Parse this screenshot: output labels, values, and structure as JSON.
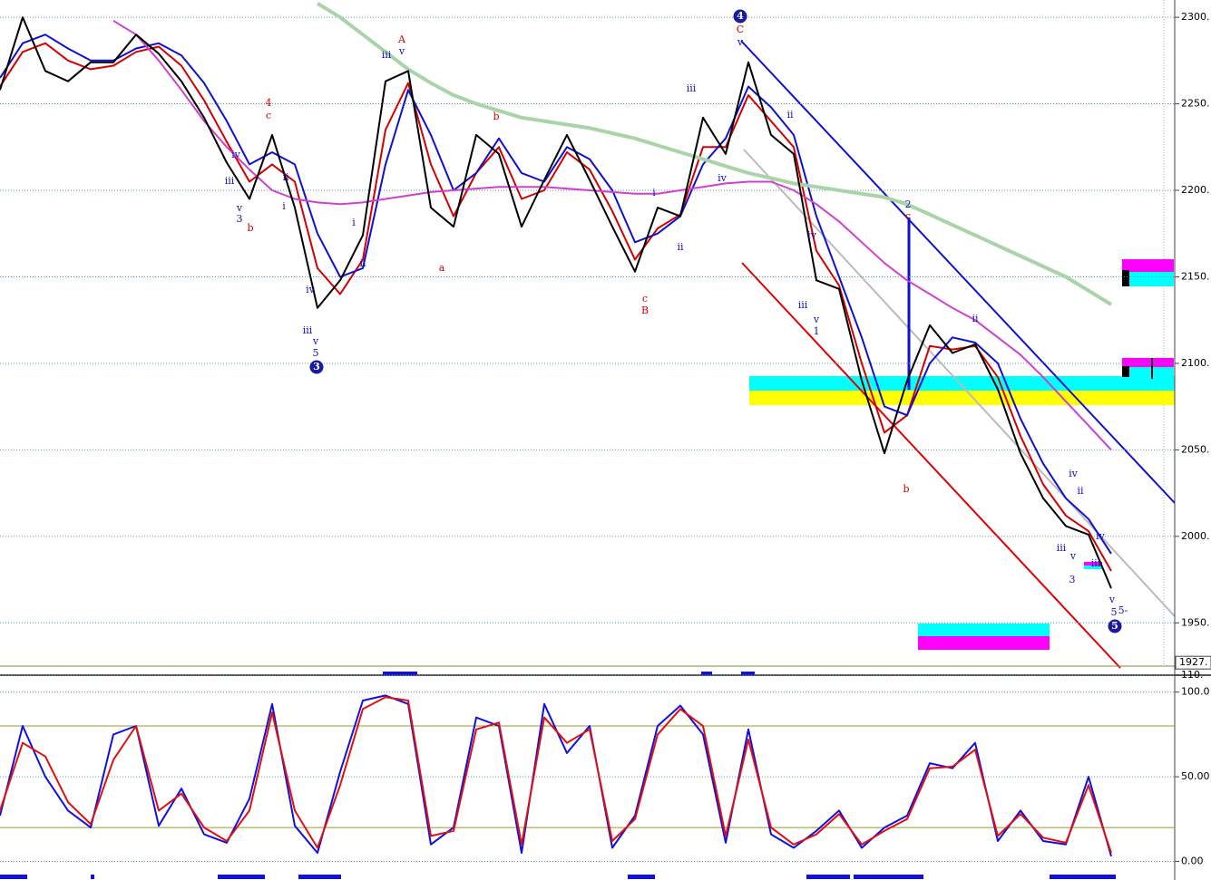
{
  "chart_data": [
    {
      "type": "line",
      "ylim": [
        1925,
        2310
      ],
      "yticks": [
        {
          "value": 1950,
          "label": "1950."
        },
        {
          "value": 2000,
          "label": "2000."
        },
        {
          "value": 2050,
          "label": "2050."
        },
        {
          "value": 2100,
          "label": "2100."
        },
        {
          "value": 2150,
          "label": "2150."
        },
        {
          "value": 2200,
          "label": "2200."
        },
        {
          "value": 2250,
          "label": "2250."
        },
        {
          "value": 2300,
          "label": "2300."
        }
      ],
      "grid": true,
      "last_price": {
        "value": 1927,
        "label": "1927."
      },
      "series": [
        {
          "color": "#d40000",
          "values": [
            2260,
            2280,
            2285,
            2275,
            2270,
            2272,
            2280,
            2283,
            2272,
            2252,
            2228,
            2205,
            2215,
            2205,
            2155,
            2140,
            2160,
            2235,
            2262,
            2215,
            2185,
            2210,
            2225,
            2195,
            2200,
            2222,
            2212,
            2188,
            2160,
            2178,
            2186,
            2225,
            2225,
            2255,
            2240,
            2225,
            2165,
            2145,
            2100,
            2060,
            2070,
            2110,
            2108,
            2110,
            2092,
            2058,
            2030,
            2012,
            2003,
            1980
          ]
        },
        {
          "color": "#1010d0",
          "values": [
            2265,
            2285,
            2290,
            2282,
            2275,
            2275,
            2282,
            2285,
            2278,
            2262,
            2240,
            2215,
            2222,
            2215,
            2175,
            2150,
            2155,
            2215,
            2258,
            2232,
            2200,
            2210,
            2230,
            2210,
            2205,
            2225,
            2218,
            2200,
            2170,
            2175,
            2185,
            2215,
            2230,
            2260,
            2248,
            2232,
            2185,
            2150,
            2115,
            2075,
            2070,
            2100,
            2115,
            2112,
            2100,
            2068,
            2042,
            2022,
            2010,
            1990
          ]
        },
        {
          "color": "#a8d4a8",
          "values": [
            null,
            null,
            null,
            null,
            null,
            null,
            null,
            null,
            null,
            null,
            null,
            null,
            null,
            null,
            2308,
            2300,
            2290,
            2280,
            2270,
            2262,
            2255,
            2250,
            2246,
            2242,
            2240,
            2238,
            2236,
            2233,
            2230,
            2226,
            2222,
            2218,
            2214,
            2210,
            2207,
            2204,
            2202,
            2200,
            2198,
            2196,
            2192,
            2186,
            2180,
            2174,
            2168,
            2162,
            2156,
            2150,
            2142,
            2134
          ]
        },
        {
          "color": "#d040d0",
          "values": [
            null,
            null,
            null,
            null,
            null,
            2298,
            2290,
            2275,
            2258,
            2240,
            2225,
            2212,
            2200,
            2195,
            2193,
            2192,
            2193,
            2195,
            2197,
            2199,
            2200,
            2201,
            2202,
            2202,
            2202,
            2201,
            2200,
            2199,
            2198,
            2198,
            2200,
            2202,
            2204,
            2205,
            2205,
            2200,
            2192,
            2182,
            2170,
            2158,
            2148,
            2140,
            2132,
            2125,
            2115,
            2105,
            2092,
            2078,
            2064,
            2050
          ]
        },
        {
          "color": "#000000",
          "values": [
            2258,
            2300,
            2269,
            2263,
            2274,
            2274,
            2290,
            2279,
            2263,
            2242,
            2216,
            2195,
            2232,
            2190,
            2132,
            2148,
            2174,
            2263,
            2269,
            2190,
            2179,
            2232,
            2221,
            2179,
            2206,
            2232,
            2206,
            2179,
            2153,
            2190,
            2185,
            2242,
            2221,
            2274,
            2232,
            2221,
            2148,
            2143,
            2090,
            2048,
            2090,
            2122,
            2106,
            2111,
            2085,
            2048,
            2022,
            2006,
            2001,
            1970
          ]
        }
      ],
      "annotations": [
        "4",
        "C",
        "v",
        "A",
        "v",
        "iii",
        "4",
        "c",
        "iv",
        "iii",
        "v",
        "3",
        "b",
        "ii",
        "i",
        "i",
        "ii",
        "iv",
        "iii",
        "v",
        "5",
        "3",
        "b",
        "a",
        "i",
        "ii",
        "c",
        "B",
        "iii",
        "iv",
        "ii",
        "iv",
        "iii",
        "v",
        "1",
        "2",
        "c",
        "b",
        "ii",
        "iv",
        "ii",
        "iii",
        "v",
        "3",
        "iv",
        "iii",
        "v",
        "5",
        "5-",
        "5"
      ]
    },
    {
      "type": "line",
      "ylim": [
        -11,
        110
      ],
      "yticks": [
        {
          "value": 0,
          "label": "0.00"
        },
        {
          "value": 50,
          "label": "50.00"
        },
        {
          "value": 100,
          "label": "100.0"
        },
        {
          "value": 110,
          "label": "110."
        }
      ],
      "grid": true,
      "reference_lines": [
        20,
        80
      ],
      "series": [
        {
          "color": "#1010e0",
          "values": [
            27,
            80,
            50,
            30,
            20,
            75,
            80,
            21,
            43,
            16,
            11,
            37,
            93,
            21,
            5,
            53,
            95,
            98,
            93,
            10,
            20,
            85,
            80,
            5,
            93,
            64,
            80,
            8,
            27,
            80,
            92,
            75,
            11,
            78,
            16,
            8,
            18,
            30,
            8,
            20,
            27,
            58,
            55,
            70,
            12,
            30,
            12,
            10,
            50,
            3
          ]
        },
        {
          "color": "#e01010",
          "values": [
            30,
            70,
            62,
            35,
            22,
            60,
            80,
            30,
            40,
            20,
            12,
            30,
            88,
            30,
            8,
            45,
            90,
            97,
            95,
            15,
            18,
            78,
            82,
            10,
            85,
            70,
            78,
            12,
            25,
            75,
            90,
            80,
            15,
            72,
            20,
            10,
            16,
            28,
            10,
            18,
            25,
            55,
            56,
            66,
            15,
            28,
            14,
            11,
            45,
            5
          ]
        }
      ]
    }
  ]
}
